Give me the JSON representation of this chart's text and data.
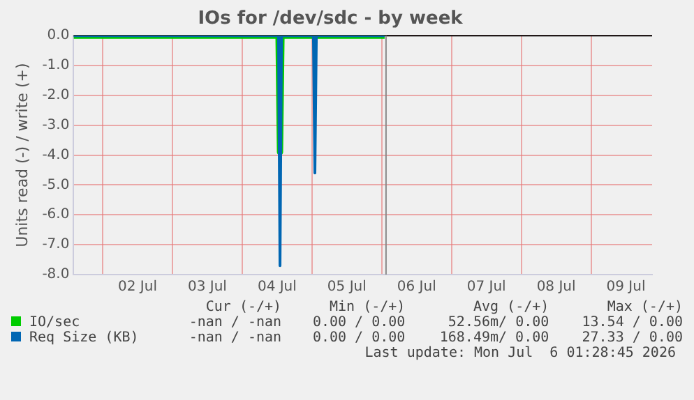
{
  "chart_data": {
    "type": "line",
    "title": "IOs for /dev/sdc - by week",
    "ylabel": "Units read (-) / write (+)",
    "x": [
      "2026-07-01T14:00",
      "2026-07-04T12:30",
      "2026-07-04T13:00",
      "2026-07-04T13:30",
      "2026-07-05T00:30",
      "2026-07-05T01:00",
      "2026-07-05T01:30",
      "2026-07-06T01:00"
    ],
    "series": [
      {
        "name": "IO/sec",
        "color": "#00cc00",
        "values": [
          0,
          0,
          -3.9,
          0,
          0,
          0,
          0,
          0
        ]
      },
      {
        "name": "Req Size (KB)",
        "color": "#0066b3",
        "values": [
          0,
          0,
          -7.7,
          0,
          0,
          -4.6,
          0,
          0
        ]
      }
    ],
    "xlim": [
      "2026-07-01T14:00",
      "2026-07-09T21:00"
    ],
    "xticks": [
      {
        "value": "2026-07-02",
        "label": null
      },
      {
        "value": "2026-07-02T12:00",
        "label": "02 Jul"
      },
      {
        "value": "2026-07-03",
        "label": null
      },
      {
        "value": "2026-07-03T12:00",
        "label": "03 Jul"
      },
      {
        "value": "2026-07-04",
        "label": null
      },
      {
        "value": "2026-07-04T12:00",
        "label": "04 Jul"
      },
      {
        "value": "2026-07-05",
        "label": null
      },
      {
        "value": "2026-07-05T12:00",
        "label": "05 Jul"
      },
      {
        "value": "2026-07-06",
        "label": null
      },
      {
        "value": "2026-07-06T12:00",
        "label": "06 Jul"
      },
      {
        "value": "2026-07-07",
        "label": null
      },
      {
        "value": "2026-07-07T12:00",
        "label": "07 Jul"
      },
      {
        "value": "2026-07-08",
        "label": null
      },
      {
        "value": "2026-07-08T12:00",
        "label": "08 Jul"
      },
      {
        "value": "2026-07-09",
        "label": null
      },
      {
        "value": "2026-07-09T12:00",
        "label": "09 Jul"
      }
    ],
    "ylim": [
      -8,
      0
    ],
    "yticks": [
      {
        "value": -8,
        "label": "-8.0"
      },
      {
        "value": -7,
        "label": "-7.0"
      },
      {
        "value": -6,
        "label": "-6.0"
      },
      {
        "value": -5,
        "label": "-5.0"
      },
      {
        "value": -4,
        "label": "-4.0"
      },
      {
        "value": -3,
        "label": "-3.0"
      },
      {
        "value": -2,
        "label": "-2.0"
      },
      {
        "value": -1,
        "label": "-1.0"
      },
      {
        "value": 0,
        "label": "0.0"
      }
    ],
    "ref_lines": [
      {
        "axis": "x",
        "value": "2026-07-06T01:28",
        "color": "#888888"
      }
    ],
    "grid": true,
    "legend": "bottom",
    "marker": "none",
    "line_style": "solid",
    "annotations": [
      "Cur (-/+)",
      "Min (-/+)",
      "Avg (-/+)",
      "Max (-/+)",
      "-nan / -nan",
      "0.00 / 0.00",
      "52.56m/ 0.00",
      "13.54 / 0.00",
      "-nan / -nan",
      "0.00 / 0.00",
      "168.49m/ 0.00",
      "27.33 / 0.00",
      "Last update: Mon Jul  6 01:28:45 2026"
    ]
  }
}
